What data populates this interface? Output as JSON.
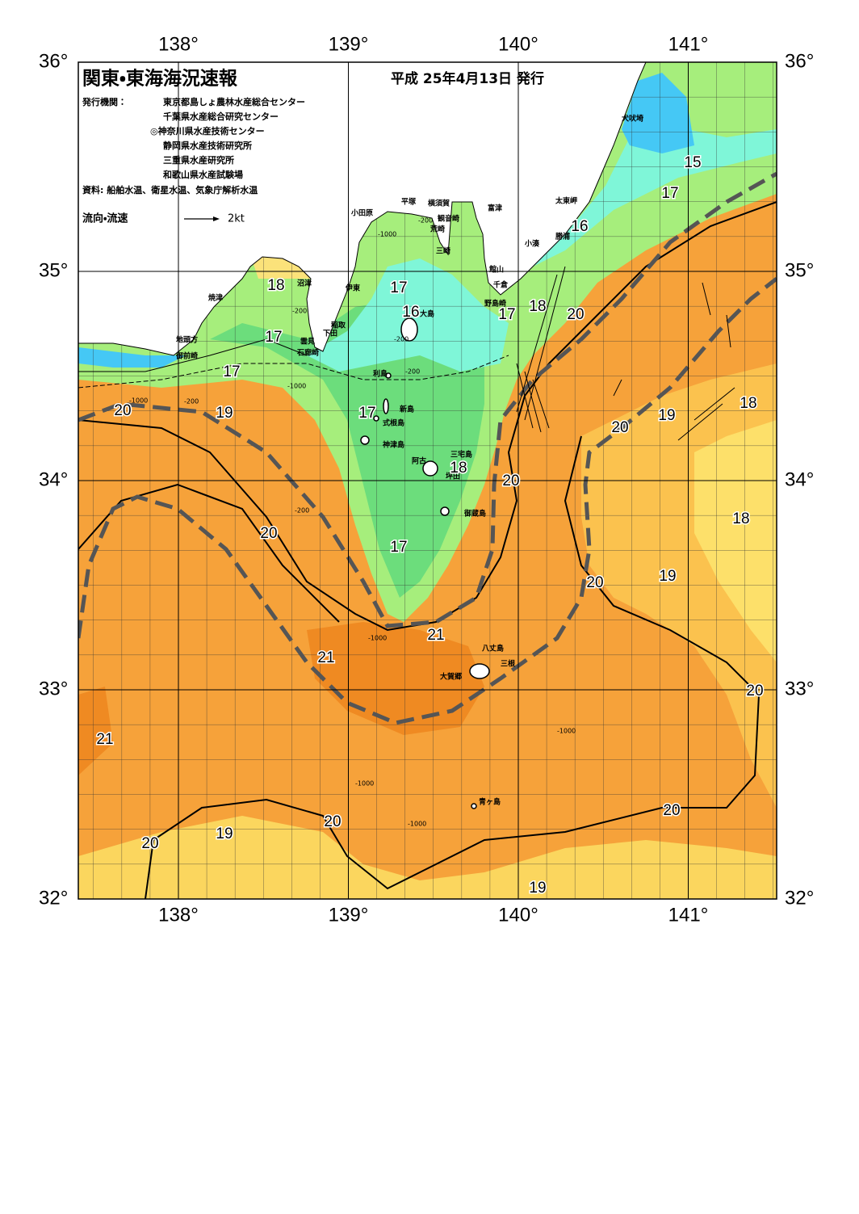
{
  "header": {
    "title": "関東・東海海況速報",
    "date": "平成 25年4月13日 発行",
    "agencies_label": "発行機関：",
    "agencies": [
      "東京都島しょ農林水産総合センター",
      "千葉県水産総合研究センター",
      "◎神奈川県水産技術センター",
      "静岡県水産技術研究所",
      "三重県水産研究所",
      "和歌山県水産試験場"
    ],
    "source": "資料: 船舶水温、衛星水温、気象庁解析水温"
  },
  "legend": {
    "label": "流向・流速",
    "speed": "2kt"
  },
  "longitude_labels": [
    {
      "value": 138,
      "label": "138°"
    },
    {
      "value": 139,
      "label": "139°"
    },
    {
      "value": 140,
      "label": "140°"
    },
    {
      "value": 141,
      "label": "141°"
    }
  ],
  "latitude_labels": [
    {
      "value": 36,
      "label": "36°"
    },
    {
      "value": 35,
      "label": "35°"
    },
    {
      "value": 34,
      "label": "34°"
    },
    {
      "value": 33,
      "label": "33°"
    },
    {
      "value": 32,
      "label": "32°"
    }
  ],
  "place_names": [
    "犬吠埼",
    "太東岬",
    "勝浦",
    "小湊",
    "館山",
    "千倉",
    "野島崎",
    "富津",
    "観音崎",
    "横須賀",
    "平塚",
    "小田原",
    "荒崎",
    "三崎",
    "沼津",
    "伊東",
    "焼津",
    "大島",
    "稲取",
    "下田",
    "雲見",
    "石廊崎",
    "地頭方",
    "御前崎",
    "利島",
    "新島",
    "式根島",
    "神津島",
    "三宅島",
    "阿古",
    "坪田",
    "御蔵島",
    "八丈島",
    "三根",
    "大賀郷",
    "青ヶ島"
  ],
  "isotherm_labels": [
    15,
    17,
    16,
    18,
    17,
    16,
    18,
    17,
    20,
    17,
    17,
    20,
    19,
    17,
    18,
    19,
    20,
    18,
    20,
    18,
    20,
    17,
    20,
    19,
    21,
    21,
    20,
    21,
    20,
    20,
    19,
    20,
    19
  ],
  "depth_labels": [
    -200,
    -200,
    -1000,
    -200,
    -200,
    -1000,
    -200,
    -1000,
    -1000,
    -1000,
    -1000,
    -1000,
    -200
  ]
}
